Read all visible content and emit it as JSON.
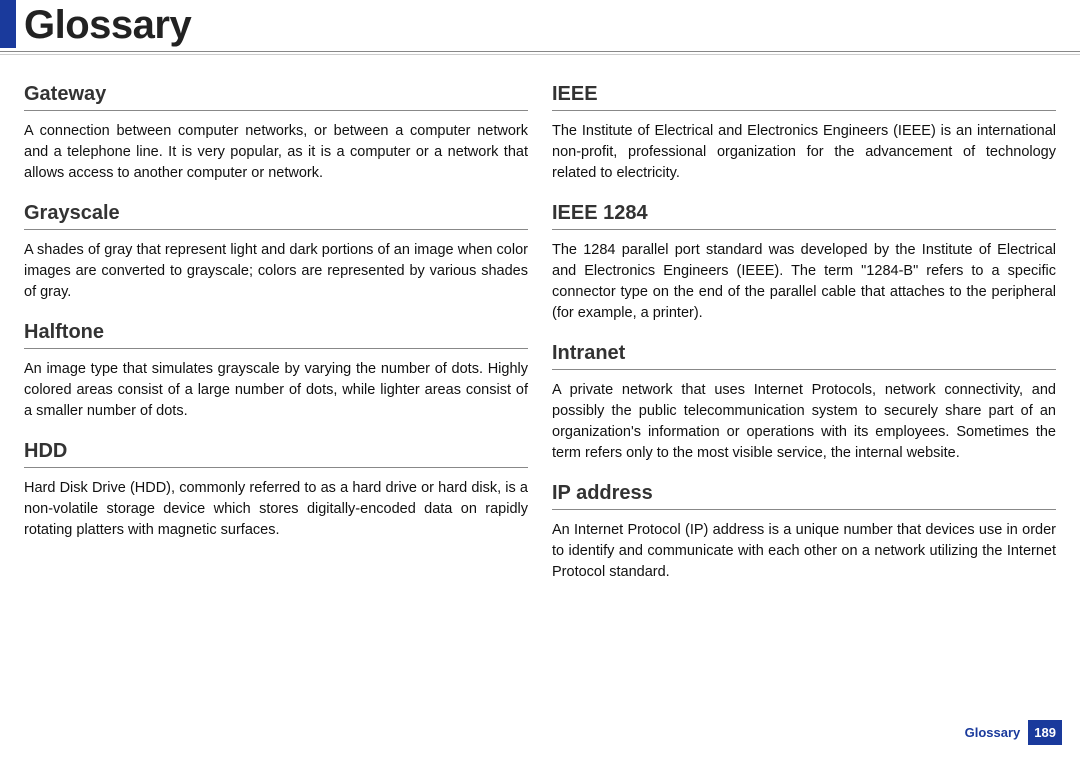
{
  "page": {
    "title": "Glossary",
    "footer_label": "Glossary",
    "page_number": "189"
  },
  "left": [
    {
      "term": "Gateway",
      "def": "A connection between computer networks, or between a computer network and a telephone line. It is very popular, as it is a computer or a network that allows access to another computer or network."
    },
    {
      "term": "Grayscale",
      "def": "A shades of gray that represent light and dark portions of an image when color images are converted to grayscale; colors are represented by various shades of gray."
    },
    {
      "term": "Halftone",
      "def": "An image type that simulates grayscale by varying the number of dots. Highly colored areas consist of a large number of dots, while lighter areas consist of a smaller number of dots."
    },
    {
      "term": "HDD",
      "def": "Hard Disk Drive (HDD), commonly referred to as a hard drive or hard disk, is a non-volatile storage device which stores digitally-encoded data on rapidly rotating platters with magnetic surfaces."
    }
  ],
  "right": [
    {
      "term": "IEEE",
      "def": "The Institute of Electrical and Electronics Engineers (IEEE) is an international non-profit, professional organization for the advancement of technology related to electricity."
    },
    {
      "term": "IEEE 1284",
      "def": "The 1284 parallel port standard was developed by the Institute of Electrical and Electronics Engineers (IEEE). The term \"1284-B\" refers to a specific connector type on the end of the parallel cable that attaches to the peripheral (for example, a printer)."
    },
    {
      "term": "Intranet",
      "def": "A private network that uses Internet Protocols, network connectivity, and possibly the public telecommunication system to securely share part of an organization's information or operations with its employees. Sometimes the term refers only to the most visible service, the internal website."
    },
    {
      "term": "IP address",
      "def": "An Internet Protocol (IP) address is a unique number that devices use in order to identify and communicate with each other on a network utilizing the Internet Protocol standard."
    }
  ]
}
